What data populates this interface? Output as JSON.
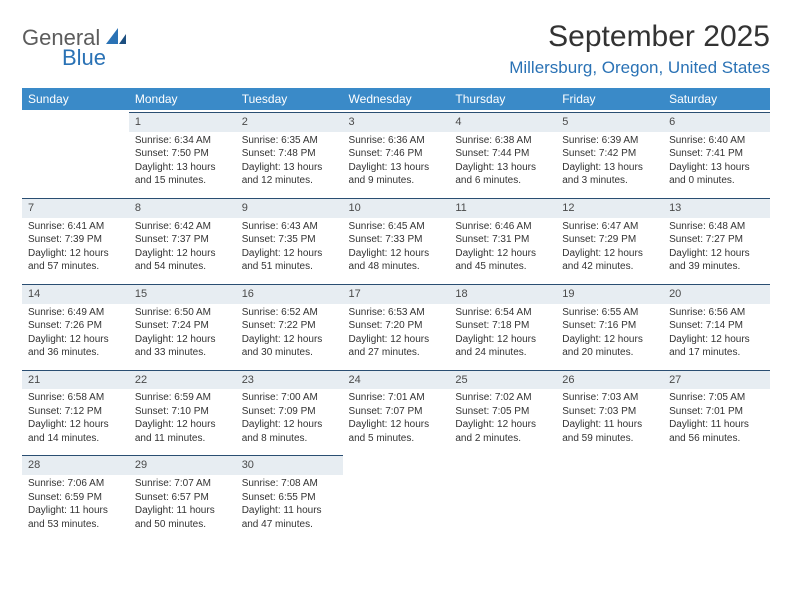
{
  "logo": {
    "part1": "General",
    "part2": "Blue"
  },
  "header": {
    "month_title": "September 2025",
    "location": "Millersburg, Oregon, United States"
  },
  "colors": {
    "header_bg": "#3a8ac8",
    "header_text": "#ffffff",
    "daynum_bg": "#e7edf2",
    "daynum_border": "#2a4e72",
    "accent": "#2a72b5",
    "logo_gray": "#5c5c5c",
    "text": "#333333",
    "background": "#ffffff"
  },
  "weekdays": [
    "Sunday",
    "Monday",
    "Tuesday",
    "Wednesday",
    "Thursday",
    "Friday",
    "Saturday"
  ],
  "weeks": [
    [
      {
        "day": "",
        "sunrise": "",
        "sunset": "",
        "daylight": ""
      },
      {
        "day": "1",
        "sunrise": "Sunrise: 6:34 AM",
        "sunset": "Sunset: 7:50 PM",
        "daylight": "Daylight: 13 hours and 15 minutes."
      },
      {
        "day": "2",
        "sunrise": "Sunrise: 6:35 AM",
        "sunset": "Sunset: 7:48 PM",
        "daylight": "Daylight: 13 hours and 12 minutes."
      },
      {
        "day": "3",
        "sunrise": "Sunrise: 6:36 AM",
        "sunset": "Sunset: 7:46 PM",
        "daylight": "Daylight: 13 hours and 9 minutes."
      },
      {
        "day": "4",
        "sunrise": "Sunrise: 6:38 AM",
        "sunset": "Sunset: 7:44 PM",
        "daylight": "Daylight: 13 hours and 6 minutes."
      },
      {
        "day": "5",
        "sunrise": "Sunrise: 6:39 AM",
        "sunset": "Sunset: 7:42 PM",
        "daylight": "Daylight: 13 hours and 3 minutes."
      },
      {
        "day": "6",
        "sunrise": "Sunrise: 6:40 AM",
        "sunset": "Sunset: 7:41 PM",
        "daylight": "Daylight: 13 hours and 0 minutes."
      }
    ],
    [
      {
        "day": "7",
        "sunrise": "Sunrise: 6:41 AM",
        "sunset": "Sunset: 7:39 PM",
        "daylight": "Daylight: 12 hours and 57 minutes."
      },
      {
        "day": "8",
        "sunrise": "Sunrise: 6:42 AM",
        "sunset": "Sunset: 7:37 PM",
        "daylight": "Daylight: 12 hours and 54 minutes."
      },
      {
        "day": "9",
        "sunrise": "Sunrise: 6:43 AM",
        "sunset": "Sunset: 7:35 PM",
        "daylight": "Daylight: 12 hours and 51 minutes."
      },
      {
        "day": "10",
        "sunrise": "Sunrise: 6:45 AM",
        "sunset": "Sunset: 7:33 PM",
        "daylight": "Daylight: 12 hours and 48 minutes."
      },
      {
        "day": "11",
        "sunrise": "Sunrise: 6:46 AM",
        "sunset": "Sunset: 7:31 PM",
        "daylight": "Daylight: 12 hours and 45 minutes."
      },
      {
        "day": "12",
        "sunrise": "Sunrise: 6:47 AM",
        "sunset": "Sunset: 7:29 PM",
        "daylight": "Daylight: 12 hours and 42 minutes."
      },
      {
        "day": "13",
        "sunrise": "Sunrise: 6:48 AM",
        "sunset": "Sunset: 7:27 PM",
        "daylight": "Daylight: 12 hours and 39 minutes."
      }
    ],
    [
      {
        "day": "14",
        "sunrise": "Sunrise: 6:49 AM",
        "sunset": "Sunset: 7:26 PM",
        "daylight": "Daylight: 12 hours and 36 minutes."
      },
      {
        "day": "15",
        "sunrise": "Sunrise: 6:50 AM",
        "sunset": "Sunset: 7:24 PM",
        "daylight": "Daylight: 12 hours and 33 minutes."
      },
      {
        "day": "16",
        "sunrise": "Sunrise: 6:52 AM",
        "sunset": "Sunset: 7:22 PM",
        "daylight": "Daylight: 12 hours and 30 minutes."
      },
      {
        "day": "17",
        "sunrise": "Sunrise: 6:53 AM",
        "sunset": "Sunset: 7:20 PM",
        "daylight": "Daylight: 12 hours and 27 minutes."
      },
      {
        "day": "18",
        "sunrise": "Sunrise: 6:54 AM",
        "sunset": "Sunset: 7:18 PM",
        "daylight": "Daylight: 12 hours and 24 minutes."
      },
      {
        "day": "19",
        "sunrise": "Sunrise: 6:55 AM",
        "sunset": "Sunset: 7:16 PM",
        "daylight": "Daylight: 12 hours and 20 minutes."
      },
      {
        "day": "20",
        "sunrise": "Sunrise: 6:56 AM",
        "sunset": "Sunset: 7:14 PM",
        "daylight": "Daylight: 12 hours and 17 minutes."
      }
    ],
    [
      {
        "day": "21",
        "sunrise": "Sunrise: 6:58 AM",
        "sunset": "Sunset: 7:12 PM",
        "daylight": "Daylight: 12 hours and 14 minutes."
      },
      {
        "day": "22",
        "sunrise": "Sunrise: 6:59 AM",
        "sunset": "Sunset: 7:10 PM",
        "daylight": "Daylight: 12 hours and 11 minutes."
      },
      {
        "day": "23",
        "sunrise": "Sunrise: 7:00 AM",
        "sunset": "Sunset: 7:09 PM",
        "daylight": "Daylight: 12 hours and 8 minutes."
      },
      {
        "day": "24",
        "sunrise": "Sunrise: 7:01 AM",
        "sunset": "Sunset: 7:07 PM",
        "daylight": "Daylight: 12 hours and 5 minutes."
      },
      {
        "day": "25",
        "sunrise": "Sunrise: 7:02 AM",
        "sunset": "Sunset: 7:05 PM",
        "daylight": "Daylight: 12 hours and 2 minutes."
      },
      {
        "day": "26",
        "sunrise": "Sunrise: 7:03 AM",
        "sunset": "Sunset: 7:03 PM",
        "daylight": "Daylight: 11 hours and 59 minutes."
      },
      {
        "day": "27",
        "sunrise": "Sunrise: 7:05 AM",
        "sunset": "Sunset: 7:01 PM",
        "daylight": "Daylight: 11 hours and 56 minutes."
      }
    ],
    [
      {
        "day": "28",
        "sunrise": "Sunrise: 7:06 AM",
        "sunset": "Sunset: 6:59 PM",
        "daylight": "Daylight: 11 hours and 53 minutes."
      },
      {
        "day": "29",
        "sunrise": "Sunrise: 7:07 AM",
        "sunset": "Sunset: 6:57 PM",
        "daylight": "Daylight: 11 hours and 50 minutes."
      },
      {
        "day": "30",
        "sunrise": "Sunrise: 7:08 AM",
        "sunset": "Sunset: 6:55 PM",
        "daylight": "Daylight: 11 hours and 47 minutes."
      },
      {
        "day": "",
        "sunrise": "",
        "sunset": "",
        "daylight": ""
      },
      {
        "day": "",
        "sunrise": "",
        "sunset": "",
        "daylight": ""
      },
      {
        "day": "",
        "sunrise": "",
        "sunset": "",
        "daylight": ""
      },
      {
        "day": "",
        "sunrise": "",
        "sunset": "",
        "daylight": ""
      }
    ]
  ]
}
